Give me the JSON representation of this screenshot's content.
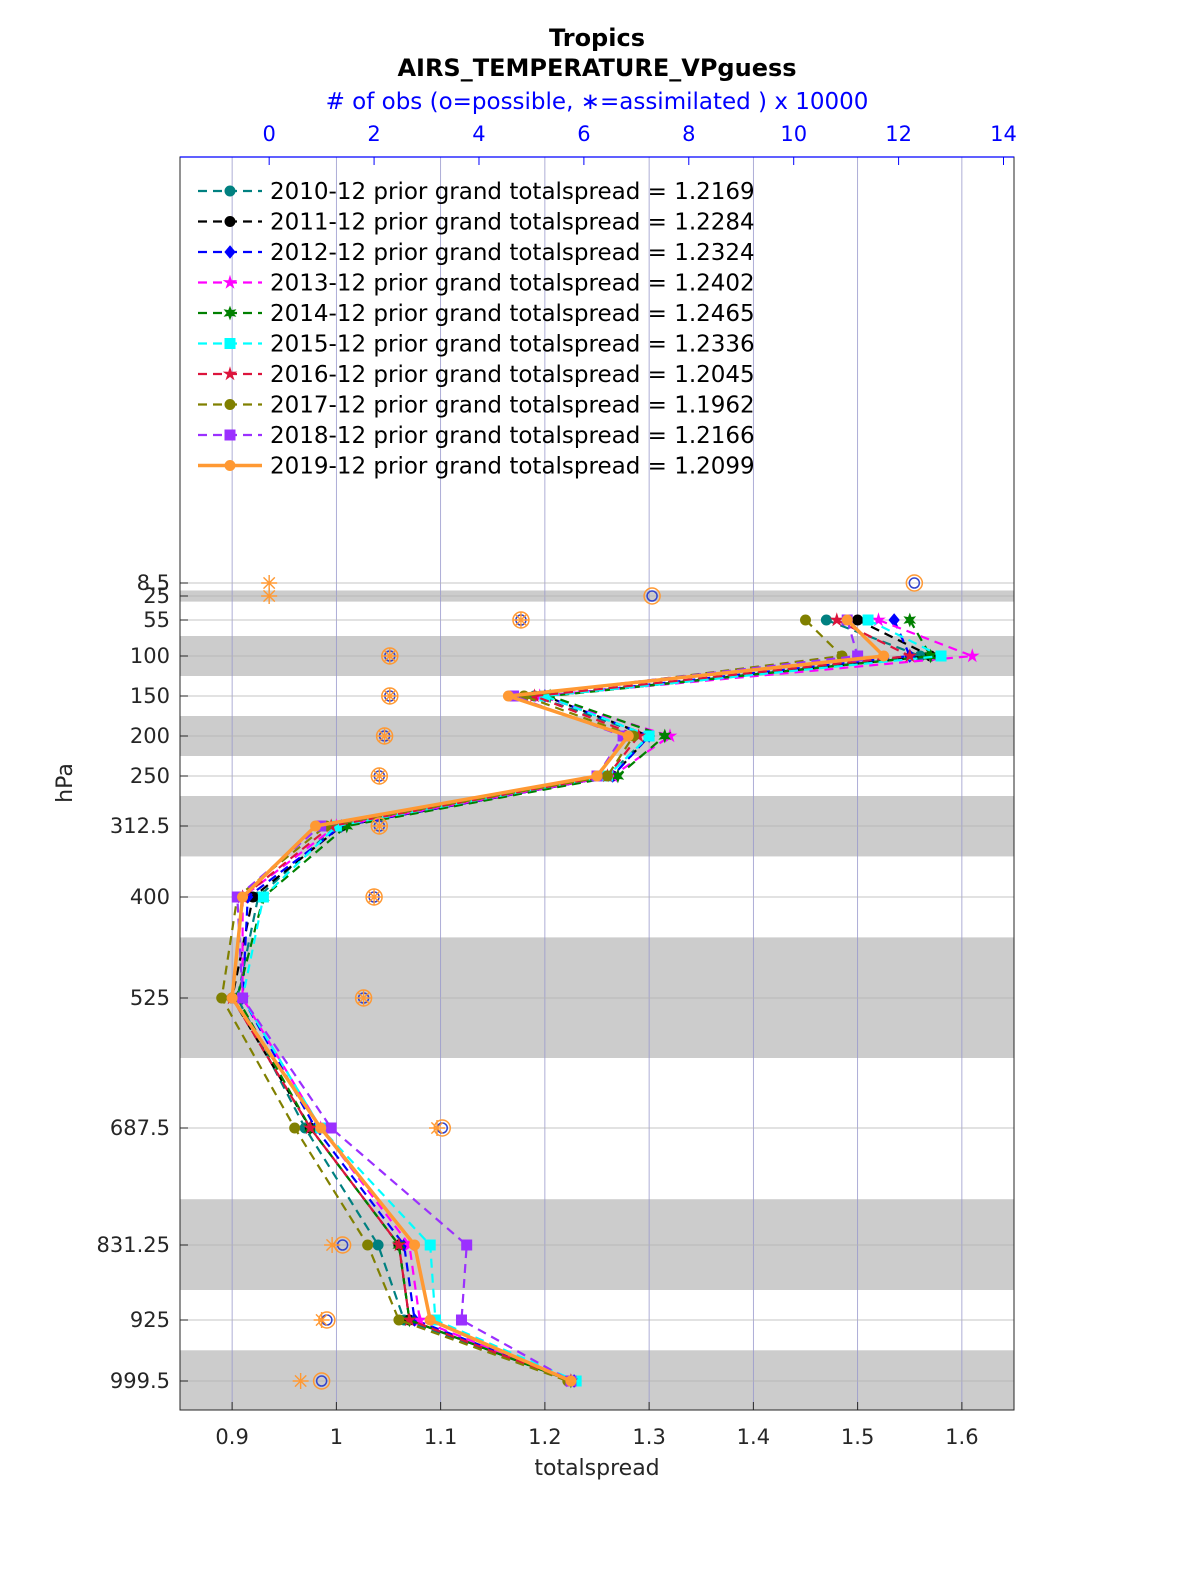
{
  "chart_data": {
    "type": "line",
    "title": "Tropics",
    "subtitle": "AIRS_TEMPERATURE_VPguess",
    "top_axis_label": "# of obs (o=possible, ∗=assimilated ) x 10000",
    "xlabel": "totalspread",
    "ylabel": "hPa",
    "xlim": [
      0.85,
      1.65
    ],
    "xticks": [
      0.9,
      1,
      1.1,
      1.2,
      1.3,
      1.4,
      1.5,
      1.6
    ],
    "xtick_labels": [
      "0.9",
      "1",
      "1.1",
      "1.2",
      "1.3",
      "1.4",
      "1.5",
      "1.6"
    ],
    "top_xlim": [
      -1.7,
      14.2
    ],
    "top_ticks": [
      0,
      2,
      4,
      6,
      8,
      10,
      12,
      14
    ],
    "top_tick_labels": [
      "0",
      "2",
      "4",
      "6",
      "8",
      "10",
      "12",
      "14"
    ],
    "y_reversed": true,
    "grid": true,
    "legend_position": "top-left",
    "levels": [
      8.5,
      25,
      55,
      100,
      150,
      200,
      250,
      312.5,
      400,
      525,
      687.5,
      831.25,
      925,
      999.5
    ],
    "level_labels": [
      "8.5",
      "25",
      "55",
      "100",
      "150",
      "200",
      "250",
      "312.5",
      "400",
      "525",
      "687.5",
      "831.25",
      "925",
      "999.5"
    ],
    "shaded_bands": [
      [
        18,
        32
      ],
      [
        75,
        125
      ],
      [
        175,
        225
      ],
      [
        275,
        350
      ],
      [
        450,
        600
      ],
      [
        775,
        887.5
      ],
      [
        962,
        1037
      ]
    ],
    "series": [
      {
        "name": "2010-12 prior grand totalspread = 1.2169",
        "color": "#008080",
        "marker": "circle",
        "style": "dashed",
        "levels": [
          55,
          100,
          150,
          200,
          250,
          312.5,
          400,
          525,
          687.5,
          831.25,
          925,
          999.5
        ],
        "values": [
          1.47,
          1.56,
          1.19,
          1.3,
          1.26,
          1.0,
          0.925,
          0.905,
          0.97,
          1.04,
          1.065,
          1.225
        ]
      },
      {
        "name": "2011-12 prior grand totalspread = 1.2284",
        "color": "#000000",
        "marker": "circle",
        "style": "dashed",
        "levels": [
          55,
          100,
          150,
          200,
          250,
          312.5,
          400,
          525,
          687.5,
          831.25,
          925,
          999.5
        ],
        "values": [
          1.5,
          1.57,
          1.2,
          1.3,
          1.265,
          1.005,
          0.92,
          0.9,
          0.975,
          1.06,
          1.07,
          1.225
        ]
      },
      {
        "name": "2012-12 prior grand totalspread = 1.2324",
        "color": "#0000ff",
        "marker": "diamond",
        "style": "dashed",
        "levels": [
          55,
          100,
          150,
          200,
          250,
          312.5,
          400,
          525,
          687.5,
          831.25,
          925,
          999.5
        ],
        "values": [
          1.535,
          1.55,
          1.2,
          1.3,
          1.265,
          1.005,
          0.915,
          0.91,
          0.98,
          1.065,
          1.075,
          1.228
        ]
      },
      {
        "name": "2013-12 prior grand totalspread = 1.2402",
        "color": "#ff00ff",
        "marker": "star",
        "style": "dashed",
        "levels": [
          55,
          100,
          150,
          200,
          250,
          312.5,
          400,
          525,
          687.5,
          831.25,
          925,
          999.5
        ],
        "values": [
          1.52,
          1.61,
          1.195,
          1.32,
          1.265,
          1.0,
          0.91,
          0.91,
          0.985,
          1.07,
          1.08,
          1.225
        ]
      },
      {
        "name": "2014-12 prior grand totalspread = 1.2465",
        "color": "#008000",
        "marker": "hexagram",
        "style": "dashed",
        "levels": [
          55,
          100,
          150,
          200,
          250,
          312.5,
          400,
          525,
          687.5,
          831.25,
          925,
          999.5
        ],
        "values": [
          1.55,
          1.57,
          1.205,
          1.315,
          1.27,
          1.01,
          0.93,
          0.905,
          0.975,
          1.06,
          1.07,
          1.225
        ]
      },
      {
        "name": "2015-12 prior grand totalspread = 1.2336",
        "color": "#00ffff",
        "marker": "square",
        "style": "dashed",
        "levels": [
          55,
          100,
          150,
          200,
          250,
          312.5,
          400,
          525,
          687.5,
          831.25,
          925,
          999.5
        ],
        "values": [
          1.51,
          1.58,
          1.2,
          1.3,
          1.26,
          1.0,
          0.93,
          0.91,
          0.985,
          1.09,
          1.095,
          1.23
        ]
      },
      {
        "name": "2016-12 prior grand totalspread = 1.2045",
        "color": "#dc143c",
        "marker": "star",
        "style": "dashed",
        "levels": [
          55,
          100,
          150,
          200,
          250,
          312.5,
          400,
          525,
          687.5,
          831.25,
          925,
          999.5
        ],
        "values": [
          1.48,
          1.55,
          1.19,
          1.29,
          1.26,
          0.995,
          0.91,
          0.9,
          0.975,
          1.06,
          1.07,
          1.225
        ]
      },
      {
        "name": "2017-12 prior grand totalspread = 1.1962",
        "color": "#808000",
        "marker": "circle",
        "style": "dashed",
        "levels": [
          55,
          100,
          150,
          200,
          250,
          312.5,
          400,
          525,
          687.5,
          831.25,
          925,
          999.5
        ],
        "values": [
          1.45,
          1.485,
          1.18,
          1.285,
          1.26,
          0.99,
          0.905,
          0.89,
          0.96,
          1.03,
          1.06,
          1.222
        ]
      },
      {
        "name": "2018-12 prior grand totalspread = 1.2166",
        "color": "#9b30ff",
        "marker": "square",
        "style": "dashed",
        "levels": [
          55,
          100,
          150,
          200,
          250,
          312.5,
          400,
          525,
          687.5,
          831.25,
          925,
          999.5
        ],
        "values": [
          1.49,
          1.5,
          1.17,
          1.275,
          1.25,
          0.985,
          0.905,
          0.91,
          0.995,
          1.125,
          1.12,
          1.225
        ]
      },
      {
        "name": "2019-12 prior grand totalspread = 1.2099",
        "color": "#ff9933",
        "marker": "circle",
        "style": "solid",
        "levels": [
          55,
          100,
          150,
          200,
          250,
          312.5,
          400,
          525,
          687.5,
          831.25,
          925,
          999.5
        ],
        "values": [
          1.49,
          1.525,
          1.165,
          1.28,
          1.25,
          0.98,
          0.91,
          0.9,
          0.985,
          1.075,
          1.09,
          1.225
        ]
      }
    ],
    "obs_counts": {
      "levels": [
        8.5,
        25,
        55,
        100,
        150,
        200,
        250,
        312.5,
        400,
        525,
        687.5,
        831.25,
        925,
        999.5
      ],
      "possible": [
        12.3,
        7.3,
        4.8,
        2.3,
        2.3,
        2.2,
        2.1,
        2.1,
        2.0,
        1.8,
        3.3,
        1.4,
        1.1,
        1.0
      ],
      "assimilated": [
        0.0,
        0.0,
        4.8,
        2.3,
        2.3,
        2.2,
        2.1,
        2.1,
        2.0,
        1.8,
        3.2,
        1.2,
        1.0,
        0.6
      ]
    }
  }
}
